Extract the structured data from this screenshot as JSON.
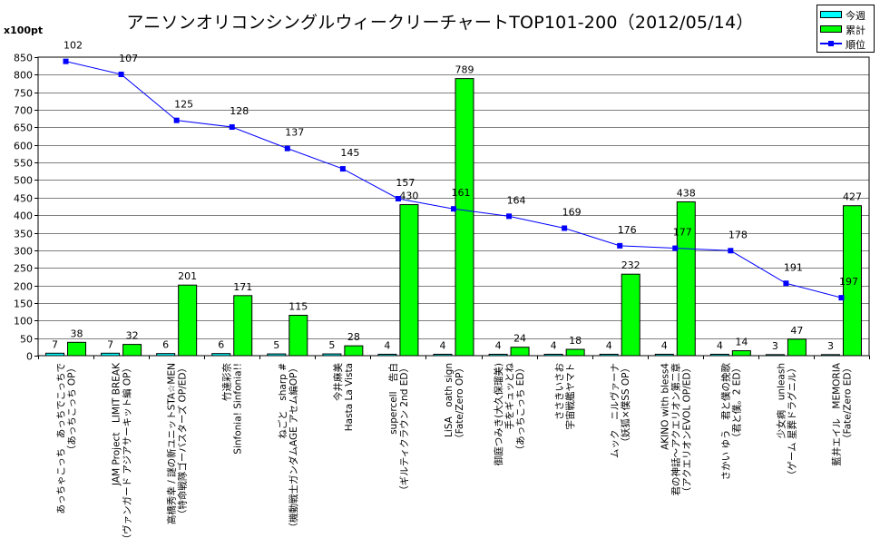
{
  "chart_data": {
    "type": "bar",
    "title": "アニソンオリコンシングルウィークリーチャートTOP101-200（2012/05/14）",
    "unit_label": "x100pt",
    "ylim": [
      0,
      850
    ],
    "yticks": [
      0,
      50,
      100,
      150,
      200,
      250,
      300,
      350,
      400,
      450,
      500,
      550,
      600,
      650,
      700,
      750,
      800,
      850
    ],
    "grid": true,
    "legend_position": "top-right",
    "categories": [
      [
        "あっちゃこっち　あっちでこっちで",
        "（あっちこっち OP）"
      ],
      [
        "JAM Project　LIMIT BREAK",
        "（ヴァンガード アジアサーキット編 OP）"
      ],
      [
        "高橋秀幸 / 謎の新ユニットSTA☆MEN",
        "（特命戦隊ゴーバスターズ OP/ED）"
      ],
      [
        "竹達彩奈",
        "Sinfonia! Sinfonia!!"
      ],
      [
        "ねごと　sharp #",
        "（機動戦士ガンダムAGE アセム編OP）"
      ],
      [
        "今井麻美",
        "Hasta La Vista"
      ],
      [
        "supercell　告白",
        "（ギルティクラウン 2nd ED）"
      ],
      [
        "LiSA　oath sign",
        "（Fate/Zero OP）"
      ],
      [
        "御庭つみき(大久保瑠美)",
        "手をギュッとね",
        "（あっちこっち ED）"
      ],
      [
        "ささきいさお",
        "宇宙戦艦ヤマト"
      ],
      [
        "ムック　ニルヴァーナ",
        "（妖狐×僕SS OP）"
      ],
      [
        "AKINO with bless4",
        "君の神話～アクエリオン第二章",
        "（アクエリオンEVOL OP/ED）"
      ],
      [
        "さかい ゆう　君と僕の挽歌",
        "（君と僕。2 ED）"
      ],
      [
        "少女病　unleash",
        "（ゲーム 星葬ドラグニル）"
      ],
      [
        "藍井エイル　MEMORIA",
        "（Fate/Zero ED）"
      ]
    ],
    "series": [
      {
        "name": "今週",
        "kind": "bar",
        "color": "#00ffff",
        "values": [
          7,
          7,
          6,
          6,
          5,
          5,
          4,
          4,
          4,
          4,
          4,
          4,
          4,
          3,
          3
        ]
      },
      {
        "name": "累計",
        "kind": "bar",
        "color": "#00ff00",
        "values": [
          38,
          32,
          201,
          171,
          115,
          28,
          430,
          789,
          24,
          18,
          232,
          438,
          14,
          47,
          427
        ]
      },
      {
        "name": "順位",
        "kind": "line",
        "color": "#0000ff",
        "values": [
          102,
          107,
          125,
          128,
          137,
          145,
          157,
          161,
          164,
          169,
          176,
          177,
          178,
          191,
          197
        ]
      }
    ],
    "rank_line_levels": [
      838,
      801,
      670,
      651,
      590,
      532,
      447,
      418,
      397,
      363,
      313,
      306,
      299,
      206,
      165
    ]
  }
}
